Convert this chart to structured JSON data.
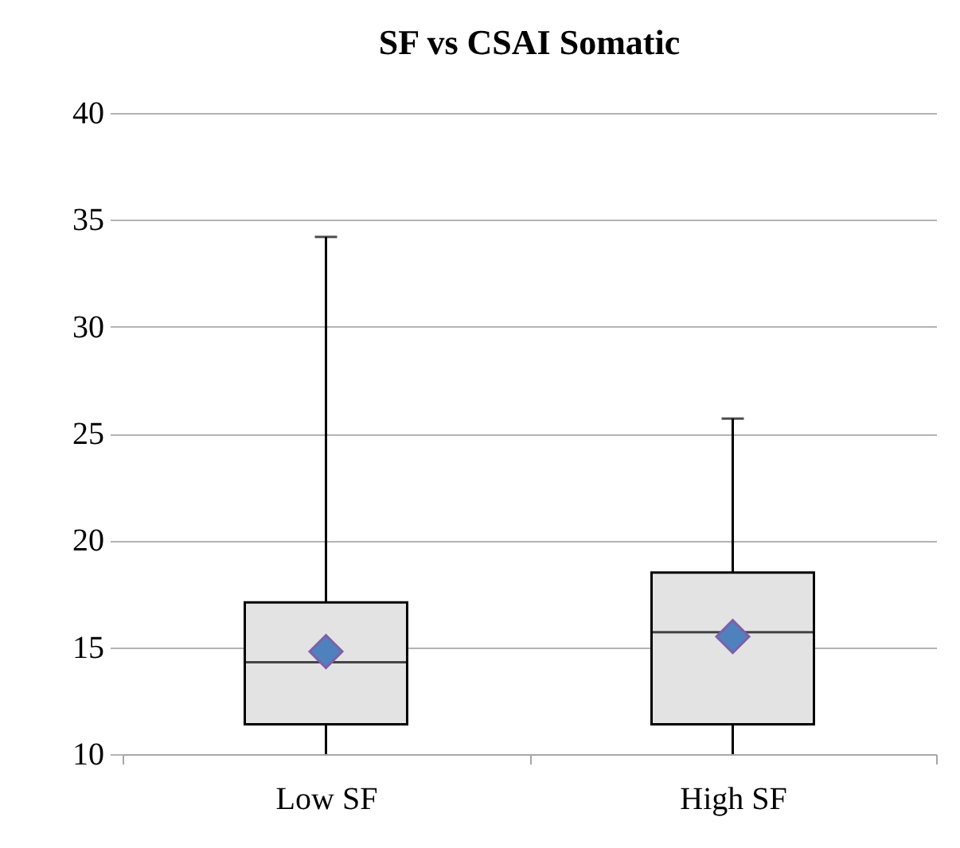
{
  "chart_data": {
    "type": "box",
    "title": "SF vs CSAI Somatic",
    "categories": [
      "Low SF",
      "High SF"
    ],
    "boxes": [
      {
        "low": 10,
        "q1": 11.4,
        "median": 14.3,
        "q3": 17.1,
        "high": 34.2,
        "mean": 14.8
      },
      {
        "low": 10,
        "q1": 11.4,
        "median": 15.7,
        "q3": 18.5,
        "high": 25.7,
        "mean": 15.5
      }
    ],
    "color": "#e3e3e3",
    "ylim": [
      10,
      40
    ],
    "yticks": [
      10,
      15,
      20,
      25,
      30,
      35,
      40
    ],
    "grid": "y",
    "marker": "diamond"
  }
}
